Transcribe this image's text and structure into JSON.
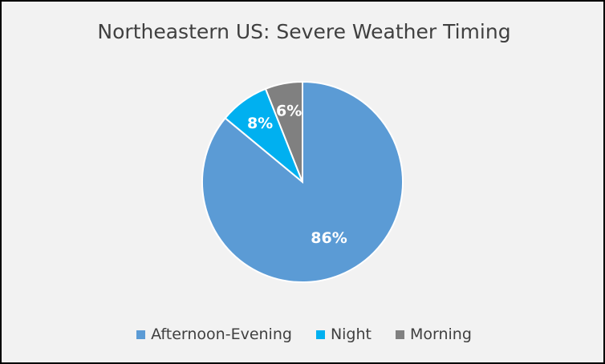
{
  "chart_data": {
    "type": "pie",
    "title": "Northeastern US: Severe Weather Timing",
    "slices": [
      {
        "label": "Afternoon-Evening",
        "value": 86,
        "display": "86%",
        "color": "#5b9bd5"
      },
      {
        "label": "Night",
        "value": 8,
        "display": "8%",
        "color": "#00b0f0"
      },
      {
        "label": "Morning",
        "value": 6,
        "display": "6%",
        "color": "#808080"
      }
    ],
    "legend_position": "bottom"
  },
  "colors": {
    "background": "#f2f2f2",
    "border": "#000000",
    "text": "#404040",
    "slice_stroke": "#ffffff"
  }
}
